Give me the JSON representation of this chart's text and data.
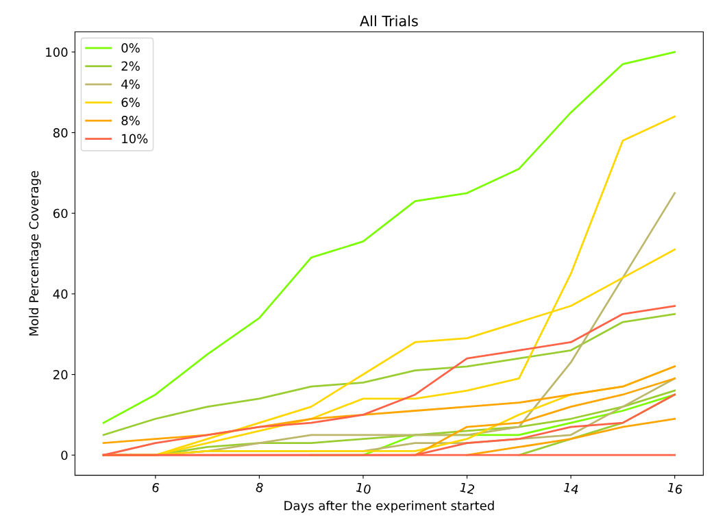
{
  "chart_data": {
    "type": "line",
    "title": "All Trials",
    "xlabel": "Days after the experiment started",
    "ylabel": "Mold Percentage Coverage",
    "x": [
      5,
      6,
      7,
      8,
      9,
      10,
      11,
      12,
      13,
      14,
      15,
      16
    ],
    "xlim": [
      4.45,
      16.55
    ],
    "xticks": [
      6,
      8,
      10,
      12,
      14,
      16
    ],
    "ylim": [
      -5,
      105
    ],
    "yticks": [
      0,
      20,
      40,
      60,
      80,
      100
    ],
    "grid": false,
    "legend": "top left",
    "line_style": "solid",
    "marker": "none",
    "series": [
      {
        "name": "0%",
        "color": "#7cfc00",
        "values": [
          8,
          15,
          25,
          34,
          49,
          53,
          63,
          65,
          71,
          85,
          97,
          100
        ]
      },
      {
        "color": "#7cfc00",
        "values": [
          null,
          null,
          null,
          null,
          0,
          0,
          5,
          5,
          5,
          8,
          11,
          15
        ]
      },
      {
        "name": "2%",
        "color": "#9acd32",
        "values": [
          5,
          9,
          12,
          14,
          17,
          18,
          21,
          22,
          24,
          26,
          33,
          35
        ]
      },
      {
        "color": "#9acd32",
        "values": [
          0,
          0,
          2,
          3,
          3,
          4,
          5,
          6,
          7,
          9,
          12,
          16
        ]
      },
      {
        "color": "#9acd32",
        "values": [
          null,
          null,
          null,
          null,
          null,
          null,
          null,
          null,
          0,
          4,
          8,
          15
        ]
      },
      {
        "name": "4%",
        "color": "#bdb76b",
        "values": [
          0,
          0,
          1,
          3,
          5,
          5,
          5,
          5,
          7,
          23,
          44,
          65
        ]
      },
      {
        "color": "#bdb76b",
        "values": [
          0,
          0,
          1,
          1,
          1,
          1,
          3,
          3,
          4,
          5,
          12,
          19
        ]
      },
      {
        "name": "6%",
        "color": "#ffd700",
        "values": [
          0,
          0,
          4,
          8,
          12,
          20,
          28,
          29,
          33,
          37,
          44,
          51
        ]
      },
      {
        "color": "#ffd700",
        "values": [
          0,
          0,
          3,
          6,
          9,
          14,
          14,
          16,
          19,
          45,
          78,
          84
        ]
      },
      {
        "color": "#ffd700",
        "values": [
          0,
          0,
          1,
          1,
          1,
          1,
          1,
          4,
          10,
          15,
          17,
          22
        ]
      },
      {
        "name": "8%",
        "color": "#ffa500",
        "values": [
          3,
          4,
          5,
          7,
          9,
          10,
          11,
          12,
          13,
          15,
          17,
          22
        ]
      },
      {
        "color": "#ffa500",
        "values": [
          null,
          null,
          null,
          null,
          null,
          null,
          0,
          7,
          8,
          12,
          15,
          19
        ]
      },
      {
        "color": "#ffa500",
        "values": [
          null,
          null,
          null,
          null,
          null,
          null,
          null,
          0,
          2,
          4,
          7,
          9
        ]
      },
      {
        "name": "10%",
        "color": "#ff6347",
        "values": [
          0,
          3,
          5,
          7,
          8,
          10,
          15,
          24,
          26,
          28,
          35,
          37
        ]
      },
      {
        "color": "#ff6347",
        "values": [
          0,
          0,
          0,
          0,
          0,
          0,
          0,
          3,
          4,
          7,
          8,
          15
        ]
      },
      {
        "color": "#ff6347",
        "values": [
          0,
          0,
          0,
          0,
          0,
          0,
          0,
          0,
          0,
          0,
          0,
          0
        ]
      }
    ]
  }
}
